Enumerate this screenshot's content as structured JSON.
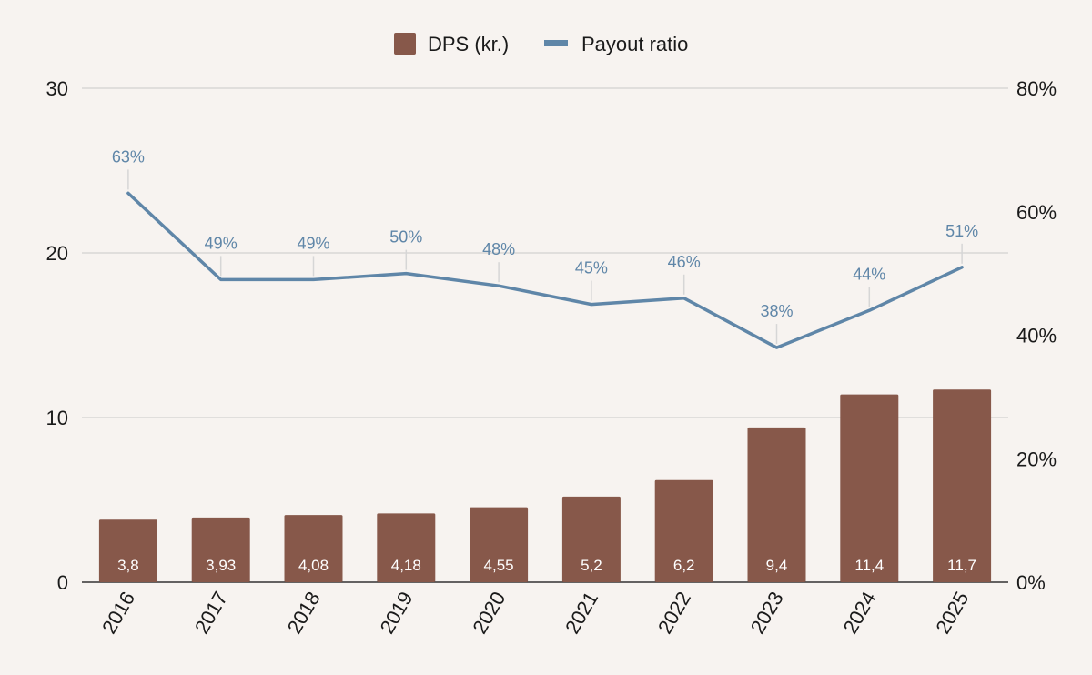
{
  "chart_data": {
    "type": "bar",
    "categories": [
      "2016",
      "2017",
      "2018",
      "2019",
      "2020",
      "2021",
      "2022",
      "2023",
      "2024",
      "2025"
    ],
    "series": [
      {
        "name": "DPS (kr.)",
        "type": "bar",
        "axis": "left",
        "values": [
          3.8,
          3.93,
          4.08,
          4.18,
          4.55,
          5.2,
          6.2,
          9.4,
          11.4,
          11.7
        ],
        "labels": [
          "3,8",
          "3,93",
          "4,08",
          "4,18",
          "4,55",
          "5,2",
          "6,2",
          "9,4",
          "11,4",
          "11,7"
        ]
      },
      {
        "name": "Payout ratio",
        "type": "line",
        "axis": "right",
        "values": [
          63,
          49,
          49,
          50,
          48,
          45,
          46,
          38,
          44,
          51
        ],
        "labels": [
          "63%",
          "49%",
          "49%",
          "50%",
          "48%",
          "45%",
          "46%",
          "38%",
          "44%",
          "51%"
        ]
      }
    ],
    "left_axis": {
      "ticks": [
        "0",
        "10",
        "20",
        "30"
      ],
      "ylim": [
        0,
        30
      ]
    },
    "right_axis": {
      "ticks": [
        "0%",
        "20%",
        "40%",
        "60%",
        "80%"
      ],
      "ylim": [
        0,
        80
      ]
    },
    "legend_position": "top",
    "grid": true,
    "colors": {
      "bar": "#87584a",
      "line": "#5f86a8",
      "grid": "#c8c8c8",
      "background": "#f7f3f0"
    }
  }
}
